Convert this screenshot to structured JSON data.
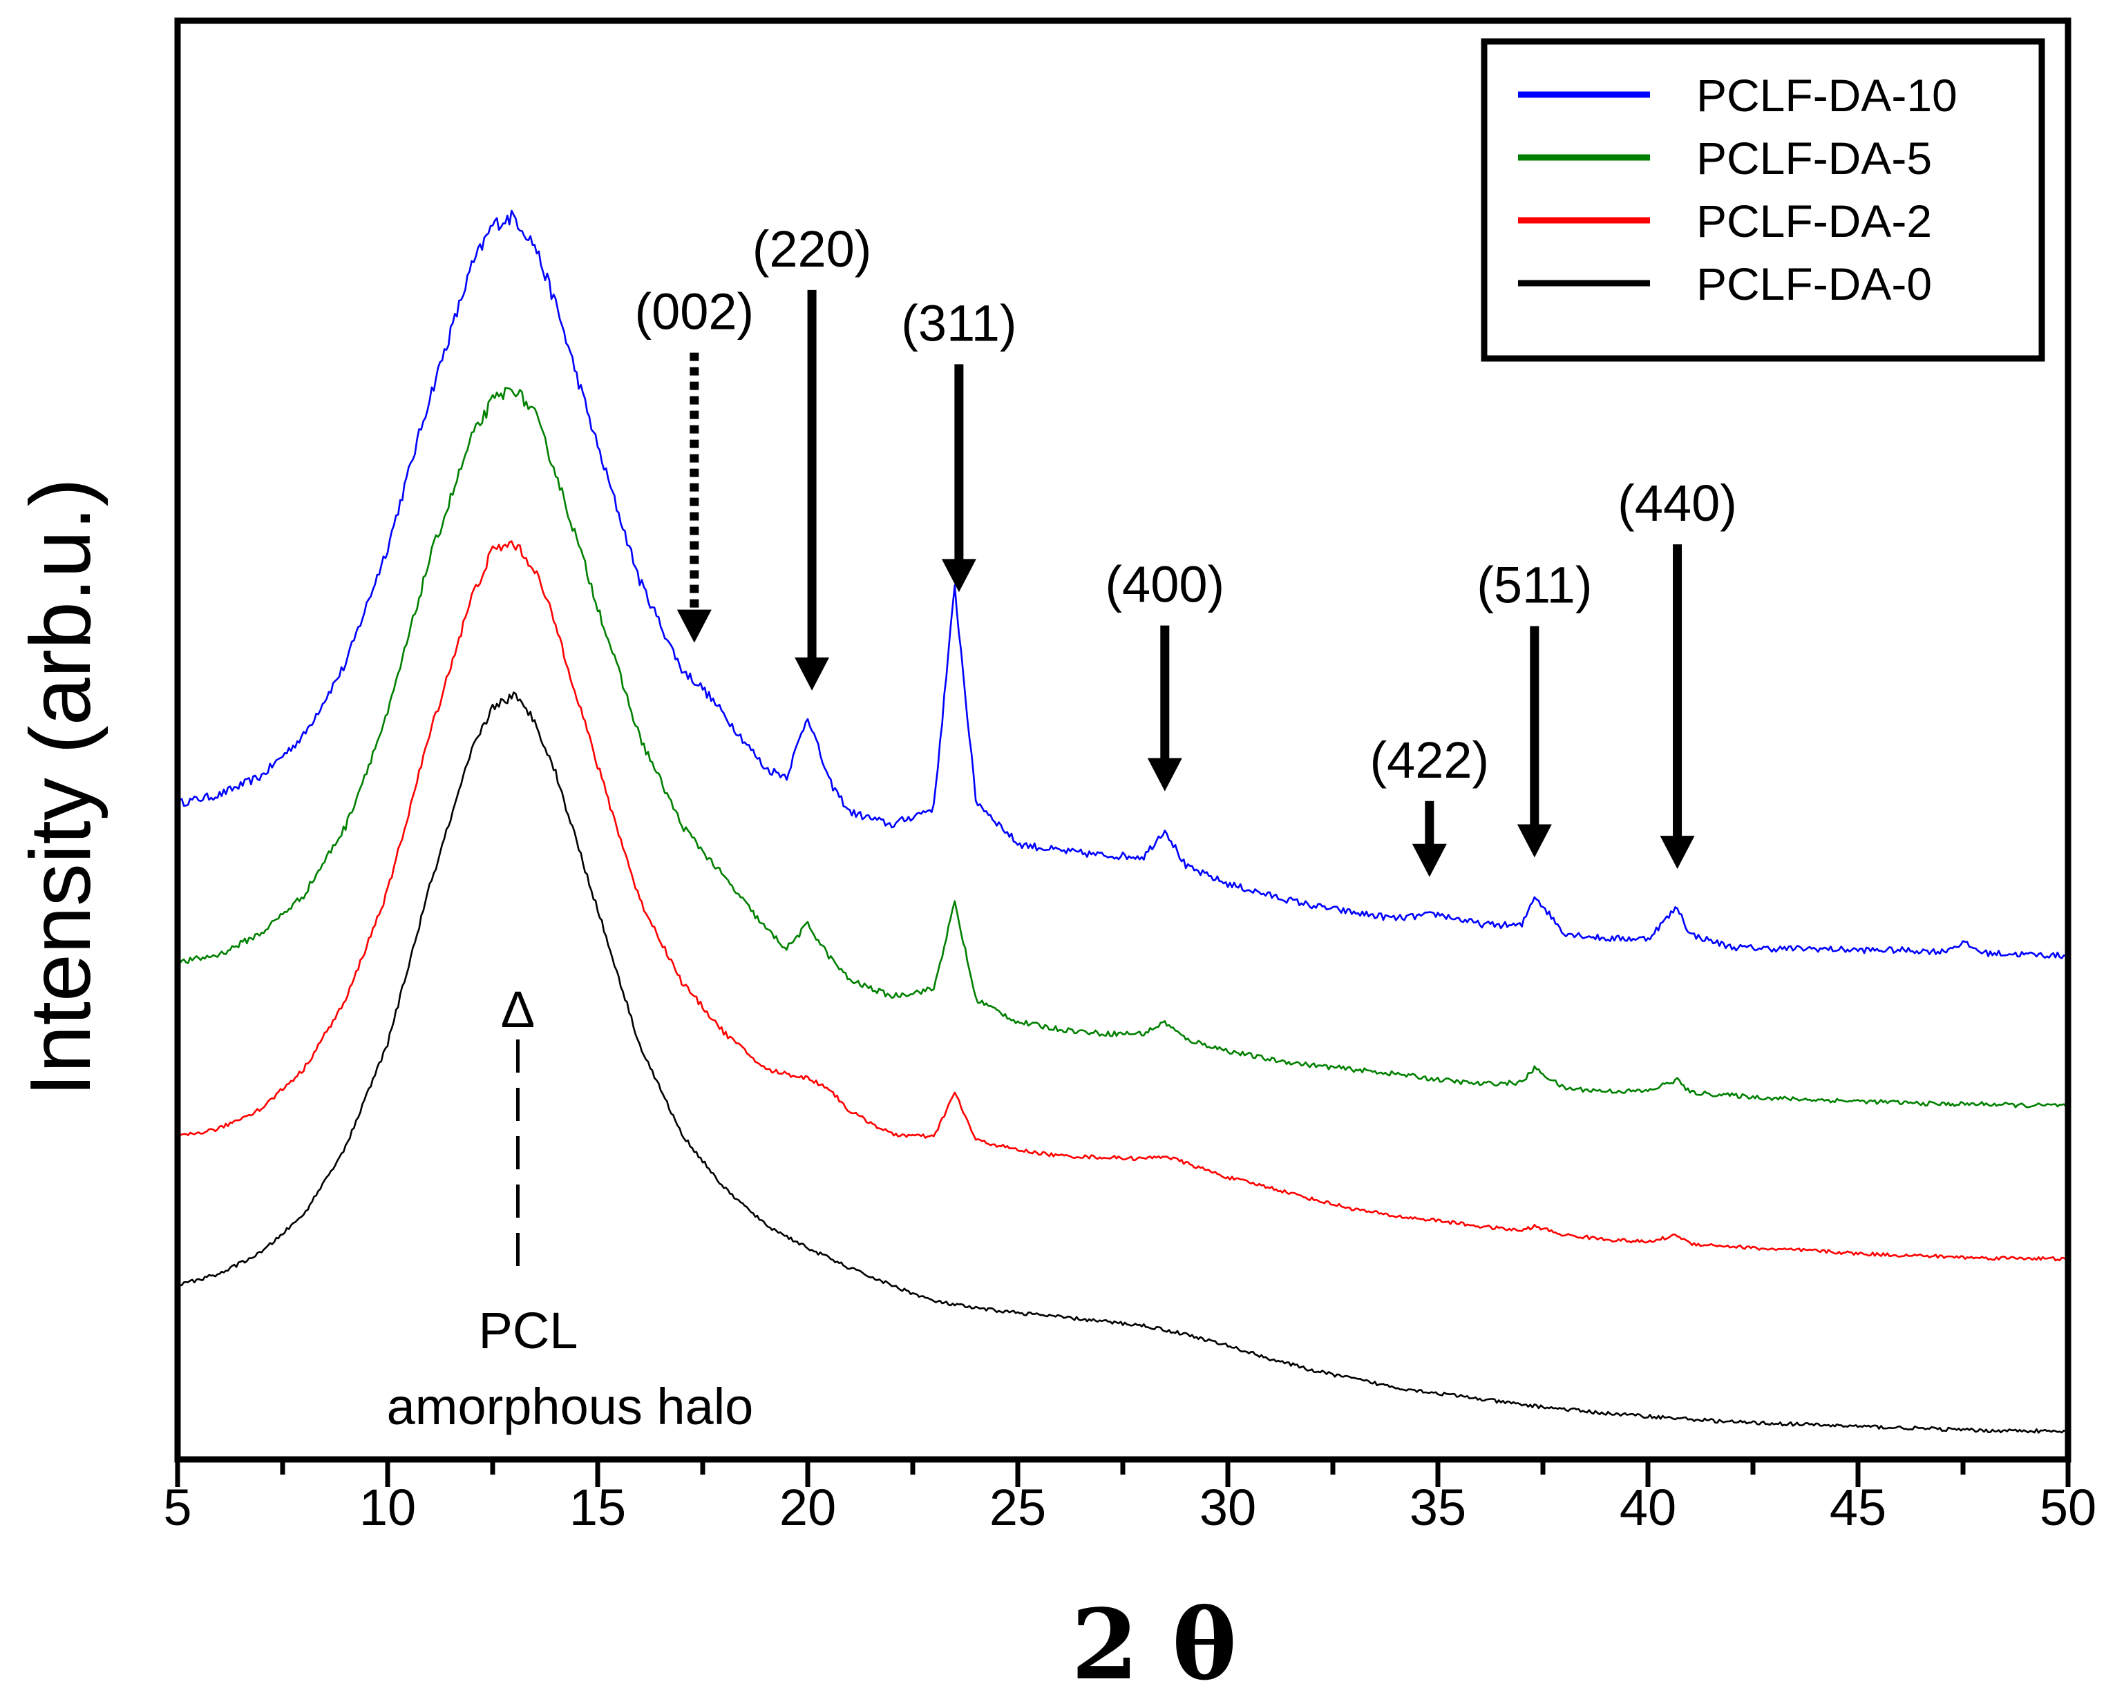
{
  "chart_data": {
    "type": "line",
    "title": "",
    "xlabel": "2 θ",
    "ylabel": "Intensity (arb.u.)",
    "xlim": [
      5,
      50
    ],
    "ylim": [
      0,
      100
    ],
    "x_ticks": [
      5,
      10,
      15,
      20,
      25,
      30,
      35,
      40,
      45,
      50
    ],
    "x_minor_step": 2.5,
    "y_ticks_shown": false,
    "grid": false,
    "legend_position": "top-right",
    "series": [
      {
        "name": "PCLF-DA-10",
        "color": "#0000ff",
        "x": [
          5,
          6,
          7,
          8,
          9,
          10,
          11,
          12,
          12.5,
          13,
          13.5,
          14,
          15,
          16,
          17,
          17.5,
          18,
          19,
          19.5,
          20,
          20.5,
          21,
          22,
          23,
          23.5,
          24,
          25,
          26,
          27,
          28,
          28.5,
          29,
          30,
          31,
          32,
          33,
          34,
          35,
          36,
          37,
          37.3,
          38,
          39,
          40,
          40.7,
          41,
          42,
          43,
          44,
          45,
          46,
          47,
          47.5,
          48,
          49,
          50
        ],
        "y": [
          45.6,
          46.2,
          47.5,
          50.3,
          55.3,
          63.4,
          73.8,
          82.9,
          85.8,
          86.4,
          84.4,
          80.3,
          70.4,
          61.1,
          54.9,
          53.6,
          51.8,
          48.0,
          47.5,
          51.7,
          47.2,
          45.0,
          44.1,
          45.3,
          60.6,
          45.8,
          42.8,
          42.3,
          42.0,
          41.9,
          43.8,
          41.2,
          40.0,
          39.2,
          38.5,
          38.0,
          37.6,
          37.9,
          37.2,
          37.1,
          39.2,
          36.6,
          36.2,
          36.2,
          38.4,
          36.5,
          35.6,
          35.5,
          35.5,
          35.4,
          35.4,
          35.3,
          35.9,
          35.2,
          35.1,
          35.0
        ]
      },
      {
        "name": "PCLF-DA-5",
        "color": "#008000",
        "x": [
          5,
          6,
          7,
          8,
          9,
          10,
          11,
          12,
          12.5,
          13,
          13.5,
          14,
          15,
          16,
          17,
          18,
          19,
          19.5,
          20,
          20.5,
          21,
          22,
          23,
          23.5,
          24,
          25,
          26,
          27,
          28,
          28.5,
          29,
          30,
          31,
          32,
          33,
          34,
          35,
          36,
          37,
          37.3,
          38,
          39,
          40,
          40.7,
          41,
          42,
          43,
          44,
          45,
          46,
          47,
          48,
          49,
          50
        ],
        "y": [
          34.5,
          35.1,
          36.6,
          39.2,
          44.0,
          51.8,
          62.6,
          71.0,
          73.6,
          74.5,
          72.7,
          68.6,
          59.3,
          50.2,
          44.1,
          40.5,
          36.9,
          35.5,
          37.2,
          35.0,
          33.3,
          32.2,
          32.7,
          38.7,
          32.0,
          30.4,
          29.9,
          29.6,
          29.6,
          30.4,
          29.2,
          28.4,
          27.8,
          27.4,
          27.1,
          26.8,
          26.4,
          26.1,
          26.2,
          27.2,
          25.8,
          25.6,
          25.6,
          26.4,
          25.5,
          25.3,
          25.1,
          25.0,
          24.9,
          24.8,
          24.7,
          24.7,
          24.6,
          24.6
        ]
      },
      {
        "name": "PCLF-DA-2",
        "color": "#ff0000",
        "x": [
          5,
          6,
          7,
          8,
          9,
          10,
          11,
          12,
          12.5,
          13,
          13.5,
          14,
          15,
          16,
          17,
          18,
          19,
          20,
          20.5,
          21,
          22,
          23,
          23.5,
          24,
          25,
          26,
          27,
          28,
          28.5,
          29,
          30,
          31,
          32,
          33,
          34,
          35,
          36,
          37,
          37.3,
          38,
          39,
          40,
          40.7,
          41,
          42,
          43,
          44,
          45,
          46,
          47,
          48,
          49,
          50
        ],
        "y": [
          22.4,
          23.0,
          24.4,
          27.1,
          31.9,
          39.5,
          50.4,
          59.9,
          63.2,
          63.7,
          61.9,
          58.0,
          48.2,
          38.9,
          33.2,
          29.7,
          27.1,
          26.5,
          25.8,
          24.2,
          22.6,
          22.4,
          25.5,
          22.2,
          21.5,
          21.1,
          21.0,
          20.9,
          21.1,
          20.6,
          19.6,
          18.9,
          18.1,
          17.4,
          16.9,
          16.6,
          16.2,
          15.9,
          16.2,
          15.6,
          15.3,
          15.1,
          15.6,
          15.0,
          14.8,
          14.6,
          14.5,
          14.3,
          14.2,
          14.1,
          14.0,
          14.0,
          13.9
        ]
      },
      {
        "name": "PCLF-DA-0",
        "color": "#000000",
        "x": [
          5,
          6,
          7,
          8,
          9,
          10,
          11,
          12,
          12.5,
          13,
          13.5,
          14,
          15,
          16,
          17,
          18,
          19,
          20,
          21,
          22,
          23,
          24,
          25,
          26,
          27,
          28,
          29,
          30,
          31,
          32,
          33,
          34,
          35,
          36,
          37,
          38,
          39,
          40,
          41,
          42,
          43,
          44,
          45,
          46,
          47,
          48,
          49,
          50
        ],
        "y": [
          12.1,
          12.9,
          14.4,
          17.0,
          21.7,
          28.9,
          39.8,
          49.2,
          52.3,
          53.1,
          51.4,
          47.7,
          38.2,
          28.8,
          22.6,
          18.9,
          16.3,
          14.7,
          13.3,
          12.1,
          11.0,
          10.5,
          10.2,
          9.9,
          9.6,
          9.3,
          8.7,
          7.9,
          7.0,
          6.2,
          5.6,
          5.0,
          4.6,
          4.2,
          3.8,
          3.5,
          3.2,
          3.0,
          2.8,
          2.6,
          2.5,
          2.4,
          2.3,
          2.2,
          2.1,
          2.0,
          2.0,
          1.9
        ]
      }
    ],
    "peak_annotations": [
      {
        "label": "(002)",
        "x": 17.3,
        "style": "dotted"
      },
      {
        "label": "(220)",
        "x": 20.1,
        "style": "solid"
      },
      {
        "label": "(311)",
        "x": 23.6,
        "style": "solid"
      },
      {
        "label": "(400)",
        "x": 28.5,
        "style": "solid"
      },
      {
        "label": "(422)",
        "x": 34.8,
        "style": "solid"
      },
      {
        "label": "(511)",
        "x": 37.3,
        "style": "solid"
      },
      {
        "label": "(440)",
        "x": 40.7,
        "style": "solid"
      }
    ],
    "halo_annotation": {
      "symbol": "Δ",
      "x": 13.1,
      "line1": "PCL",
      "line2": "amorphous halo"
    }
  }
}
